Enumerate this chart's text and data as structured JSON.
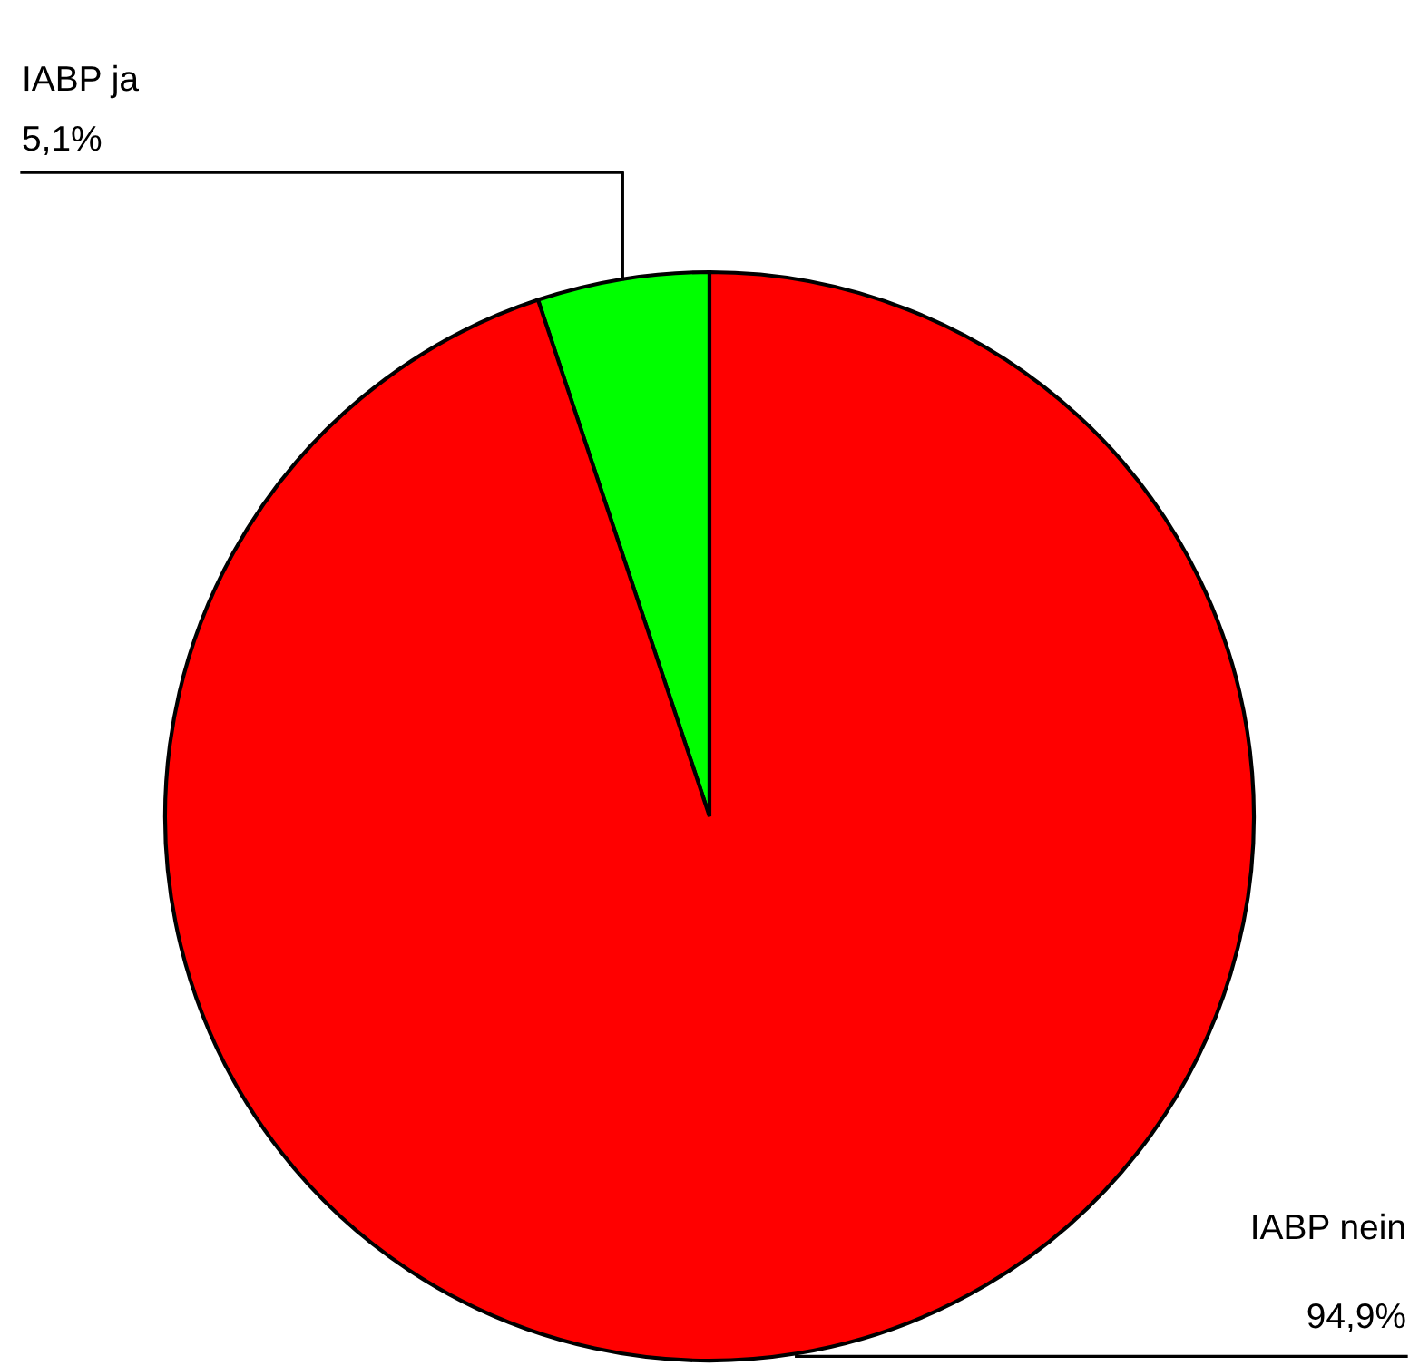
{
  "chart_data": {
    "type": "pie",
    "categories": [
      "IABP ja",
      "IABP nein"
    ],
    "values": [
      5.1,
      94.9
    ],
    "colors": [
      "#00ff00",
      "#ff0000"
    ],
    "value_labels": [
      "5,1%",
      "94,9%"
    ]
  }
}
